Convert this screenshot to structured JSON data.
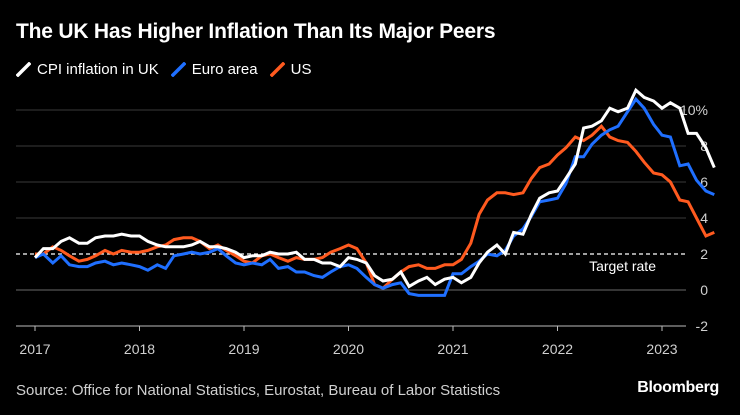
{
  "chart_data": {
    "type": "line",
    "title": "The UK Has Higher Inflation Than Its Major Peers",
    "ylim": [
      -2,
      10
    ],
    "yticks": [
      -2,
      0,
      2,
      4,
      6,
      8,
      10
    ],
    "ytick_labels": [
      "-2",
      "0",
      "2",
      "4",
      "6",
      "8",
      "10%"
    ],
    "xticks": [
      2017,
      2018,
      2019,
      2020,
      2021,
      2022,
      2023
    ],
    "xtick_labels": [
      "2017",
      "2018",
      "2019",
      "2020",
      "2021",
      "2022",
      "2023"
    ],
    "legend_position": "top-left",
    "reference_line": {
      "value": 2,
      "label": "Target rate",
      "style": "dashed"
    },
    "series": [
      {
        "name": "CPI inflation in UK",
        "color": "#ffffff",
        "x": [
          2017.0,
          2017.08,
          2017.17,
          2017.25,
          2017.33,
          2017.42,
          2017.5,
          2017.58,
          2017.67,
          2017.75,
          2017.83,
          2017.92,
          2018.0,
          2018.08,
          2018.17,
          2018.25,
          2018.33,
          2018.42,
          2018.5,
          2018.58,
          2018.67,
          2018.75,
          2018.83,
          2018.92,
          2019.0,
          2019.08,
          2019.17,
          2019.25,
          2019.33,
          2019.42,
          2019.5,
          2019.58,
          2019.67,
          2019.75,
          2019.83,
          2019.92,
          2020.0,
          2020.08,
          2020.17,
          2020.25,
          2020.33,
          2020.42,
          2020.5,
          2020.58,
          2020.67,
          2020.75,
          2020.83,
          2020.92,
          2021.0,
          2021.08,
          2021.17,
          2021.25,
          2021.33,
          2021.42,
          2021.5,
          2021.58,
          2021.67,
          2021.75,
          2021.83,
          2021.92,
          2022.0,
          2022.08,
          2022.17,
          2022.25,
          2022.33,
          2022.42,
          2022.5,
          2022.58,
          2022.67,
          2022.75,
          2022.83,
          2022.92,
          2023.0,
          2023.08,
          2023.17,
          2023.25,
          2023.33,
          2023.42,
          2023.5
        ],
        "values": [
          1.8,
          2.3,
          2.3,
          2.7,
          2.9,
          2.6,
          2.6,
          2.9,
          3.0,
          3.0,
          3.1,
          3.0,
          3.0,
          2.7,
          2.5,
          2.4,
          2.4,
          2.4,
          2.5,
          2.7,
          2.4,
          2.4,
          2.3,
          2.1,
          1.8,
          1.9,
          1.9,
          2.1,
          2.0,
          2.0,
          2.1,
          1.7,
          1.7,
          1.5,
          1.5,
          1.3,
          1.8,
          1.7,
          1.5,
          0.8,
          0.5,
          0.6,
          1.0,
          0.2,
          0.5,
          0.7,
          0.3,
          0.6,
          0.7,
          0.4,
          0.7,
          1.5,
          2.1,
          2.5,
          2.0,
          3.2,
          3.1,
          4.2,
          5.1,
          5.4,
          5.5,
          6.2,
          7.0,
          9.0,
          9.1,
          9.4,
          10.1,
          9.9,
          10.1,
          11.1,
          10.7,
          10.5,
          10.1,
          10.4,
          10.1,
          8.7,
          8.7,
          7.9,
          6.8
        ]
      },
      {
        "name": "Euro area",
        "color": "#1f6fff",
        "x": [
          2017.0,
          2017.08,
          2017.17,
          2017.25,
          2017.33,
          2017.42,
          2017.5,
          2017.58,
          2017.67,
          2017.75,
          2017.83,
          2017.92,
          2018.0,
          2018.08,
          2018.17,
          2018.25,
          2018.33,
          2018.42,
          2018.5,
          2018.58,
          2018.67,
          2018.75,
          2018.83,
          2018.92,
          2019.0,
          2019.08,
          2019.17,
          2019.25,
          2019.33,
          2019.42,
          2019.5,
          2019.58,
          2019.67,
          2019.75,
          2019.83,
          2019.92,
          2020.0,
          2020.08,
          2020.17,
          2020.25,
          2020.33,
          2020.42,
          2020.5,
          2020.58,
          2020.67,
          2020.75,
          2020.83,
          2020.92,
          2021.0,
          2021.08,
          2021.17,
          2021.25,
          2021.33,
          2021.42,
          2021.5,
          2021.58,
          2021.67,
          2021.75,
          2021.83,
          2021.92,
          2022.0,
          2022.08,
          2022.17,
          2022.25,
          2022.33,
          2022.42,
          2022.5,
          2022.58,
          2022.67,
          2022.75,
          2022.83,
          2022.92,
          2023.0,
          2023.08,
          2023.17,
          2023.25,
          2023.33,
          2023.42,
          2023.5
        ],
        "values": [
          1.8,
          2.0,
          1.5,
          1.9,
          1.4,
          1.3,
          1.3,
          1.5,
          1.6,
          1.4,
          1.5,
          1.4,
          1.3,
          1.1,
          1.4,
          1.2,
          1.9,
          2.0,
          2.1,
          2.0,
          2.1,
          2.3,
          1.9,
          1.5,
          1.4,
          1.5,
          1.4,
          1.7,
          1.2,
          1.3,
          1.0,
          1.0,
          0.8,
          0.7,
          1.0,
          1.3,
          1.4,
          1.2,
          0.7,
          0.3,
          0.1,
          0.3,
          0.4,
          -0.2,
          -0.3,
          -0.3,
          -0.3,
          -0.3,
          0.9,
          0.9,
          1.3,
          1.6,
          2.0,
          1.9,
          2.2,
          3.0,
          3.4,
          4.1,
          4.9,
          5.0,
          5.1,
          5.9,
          7.4,
          7.4,
          8.1,
          8.6,
          8.9,
          9.1,
          9.9,
          10.6,
          10.1,
          9.2,
          8.6,
          8.5,
          6.9,
          7.0,
          6.1,
          5.5,
          5.3
        ]
      },
      {
        "name": "US",
        "color": "#ff5a1f",
        "x": [
          2017.0,
          2017.08,
          2017.17,
          2017.25,
          2017.33,
          2017.42,
          2017.5,
          2017.58,
          2017.67,
          2017.75,
          2017.83,
          2017.92,
          2018.0,
          2018.08,
          2018.17,
          2018.25,
          2018.33,
          2018.42,
          2018.5,
          2018.58,
          2018.67,
          2018.75,
          2018.83,
          2018.92,
          2019.0,
          2019.08,
          2019.17,
          2019.25,
          2019.33,
          2019.42,
          2019.5,
          2019.58,
          2019.67,
          2019.75,
          2019.83,
          2019.92,
          2020.0,
          2020.08,
          2020.17,
          2020.25,
          2020.33,
          2020.42,
          2020.5,
          2020.58,
          2020.67,
          2020.75,
          2020.83,
          2020.92,
          2021.0,
          2021.08,
          2021.17,
          2021.25,
          2021.33,
          2021.42,
          2021.5,
          2021.58,
          2021.67,
          2021.75,
          2021.83,
          2021.92,
          2022.0,
          2022.08,
          2022.17,
          2022.25,
          2022.33,
          2022.42,
          2022.5,
          2022.58,
          2022.67,
          2022.75,
          2022.83,
          2022.92,
          2023.0,
          2023.08,
          2023.17,
          2023.25,
          2023.33,
          2023.42,
          2023.5
        ],
        "values": [
          2.0,
          2.0,
          2.4,
          2.2,
          1.9,
          1.6,
          1.7,
          1.9,
          2.2,
          2.0,
          2.2,
          2.1,
          2.1,
          2.2,
          2.4,
          2.5,
          2.8,
          2.9,
          2.9,
          2.7,
          2.3,
          2.5,
          2.2,
          1.9,
          1.6,
          1.5,
          1.9,
          2.0,
          1.8,
          1.6,
          1.8,
          1.7,
          1.7,
          1.8,
          2.1,
          2.3,
          2.5,
          2.3,
          1.5,
          0.3,
          0.1,
          0.6,
          1.0,
          1.3,
          1.4,
          1.2,
          1.2,
          1.4,
          1.4,
          1.7,
          2.6,
          4.2,
          5.0,
          5.4,
          5.4,
          5.3,
          5.4,
          6.2,
          6.8,
          7.0,
          7.5,
          7.9,
          8.5,
          8.3,
          8.6,
          9.1,
          8.5,
          8.3,
          8.2,
          7.7,
          7.1,
          6.5,
          6.4,
          6.0,
          5.0,
          4.9,
          4.0,
          3.0,
          3.2
        ]
      }
    ]
  },
  "source_text": "Source: Office for National Statistics, Eurostat, Bureau of Labor Statistics",
  "brand_text": "Bloomberg",
  "colors": {
    "background": "#000000",
    "grid": "#3a3a3a",
    "text": "#ffffff",
    "axis_text": "#d0d0d0"
  }
}
